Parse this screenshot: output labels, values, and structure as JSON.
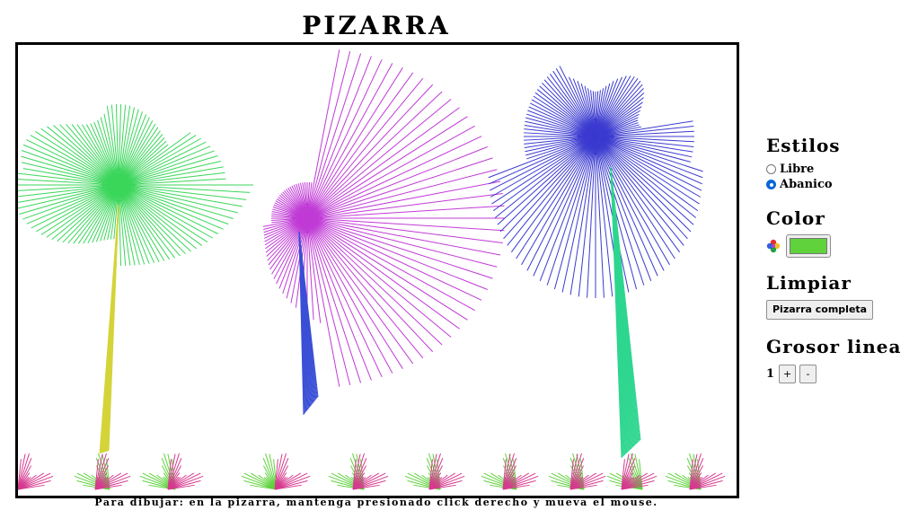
{
  "title": "PIZARRA",
  "instructions": "Para dibujar: en la pizarra, mantenga presionado click derecho y mueva el mouse.",
  "sidebar": {
    "styles": {
      "heading": "Estilos",
      "options": [
        {
          "label": "Libre",
          "selected": false
        },
        {
          "label": "Abanico",
          "selected": true
        }
      ]
    },
    "color": {
      "heading": "Color",
      "icon": "color-wheel-icon",
      "value": "#5fd23c"
    },
    "clear": {
      "heading": "Limpiar",
      "button_label": "Pizarra completa"
    },
    "thickness": {
      "heading": "Grosor linea",
      "value": "1",
      "plus_label": "+",
      "minus_label": "-"
    }
  },
  "drawing_colors": {
    "green": "#3ad65a",
    "yellow": "#d4d43a",
    "magenta": "#c03ad6",
    "blue_stem": "#3a4fd6",
    "blue": "#3a3ad0",
    "teal": "#2ed68f",
    "pink": "#d63a8f",
    "lime": "#5fd23c"
  }
}
